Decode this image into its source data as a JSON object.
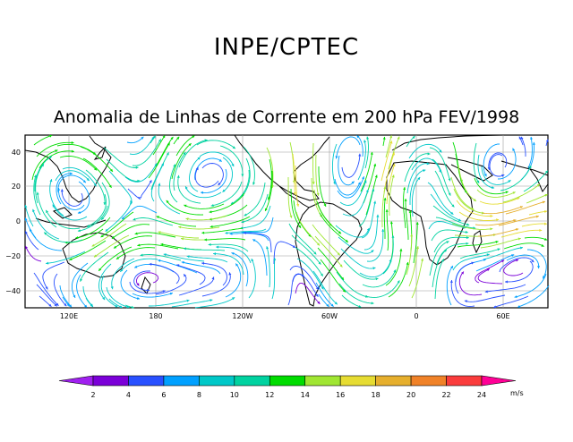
{
  "header": {
    "institution": "INPE/CPTEC",
    "title": "Anomalia de Linhas de Corrente em 200 hPa FEV/1998"
  },
  "map": {
    "lat_labels": [
      "40",
      "20",
      "0",
      "−20",
      "−40"
    ],
    "lon_labels": [
      "120E",
      "180",
      "120W",
      "60W",
      "0",
      "60E"
    ]
  },
  "colorbar": {
    "labels": [
      "2",
      "4",
      "6",
      "8",
      "10",
      "12",
      "14",
      "16",
      "18",
      "20",
      "22",
      "24"
    ],
    "colors": [
      "#a020f0",
      "#7b00d8",
      "#2850ff",
      "#00a0ff",
      "#00c8c8",
      "#00d2a0",
      "#00dc00",
      "#a0e632",
      "#e6dc32",
      "#e6af2d",
      "#f08228",
      "#fa3c3c",
      "#ff0096"
    ],
    "unit": "m/s"
  }
}
